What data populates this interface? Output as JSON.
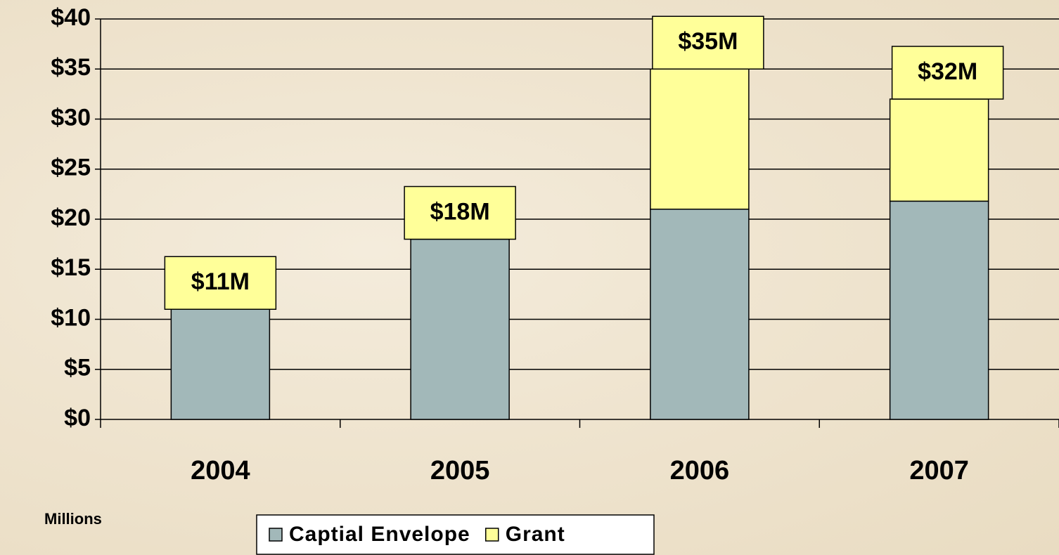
{
  "chart_data": {
    "type": "stacked_bar",
    "categories": [
      "2004",
      "2005",
      "2006",
      "2007"
    ],
    "series": [
      {
        "name": "Captial Envelope",
        "color": "#a2b8b9",
        "values": [
          11,
          18,
          21,
          21.8
        ]
      },
      {
        "name": "Grant",
        "color": "#ffff99",
        "values": [
          0,
          0,
          14,
          10.2
        ]
      }
    ],
    "totals": {
      "values": [
        11,
        18,
        35,
        32
      ],
      "value_labels": [
        "$11M",
        "$18M",
        "$35M",
        "$32M"
      ]
    },
    "ylim": [
      0,
      40
    ],
    "yticks": [
      {
        "value": 0,
        "label": "$0"
      },
      {
        "value": 5,
        "label": "$5"
      },
      {
        "value": 10,
        "label": "$10"
      },
      {
        "value": 15,
        "label": "$15"
      },
      {
        "value": 20,
        "label": "$20"
      },
      {
        "value": 25,
        "label": "$25"
      },
      {
        "value": 30,
        "label": "$30"
      },
      {
        "value": 35,
        "label": "$35"
      },
      {
        "value": 40,
        "label": "$40"
      }
    ],
    "y_axis_note": "Millions",
    "grid": true,
    "legend": "bottom"
  }
}
